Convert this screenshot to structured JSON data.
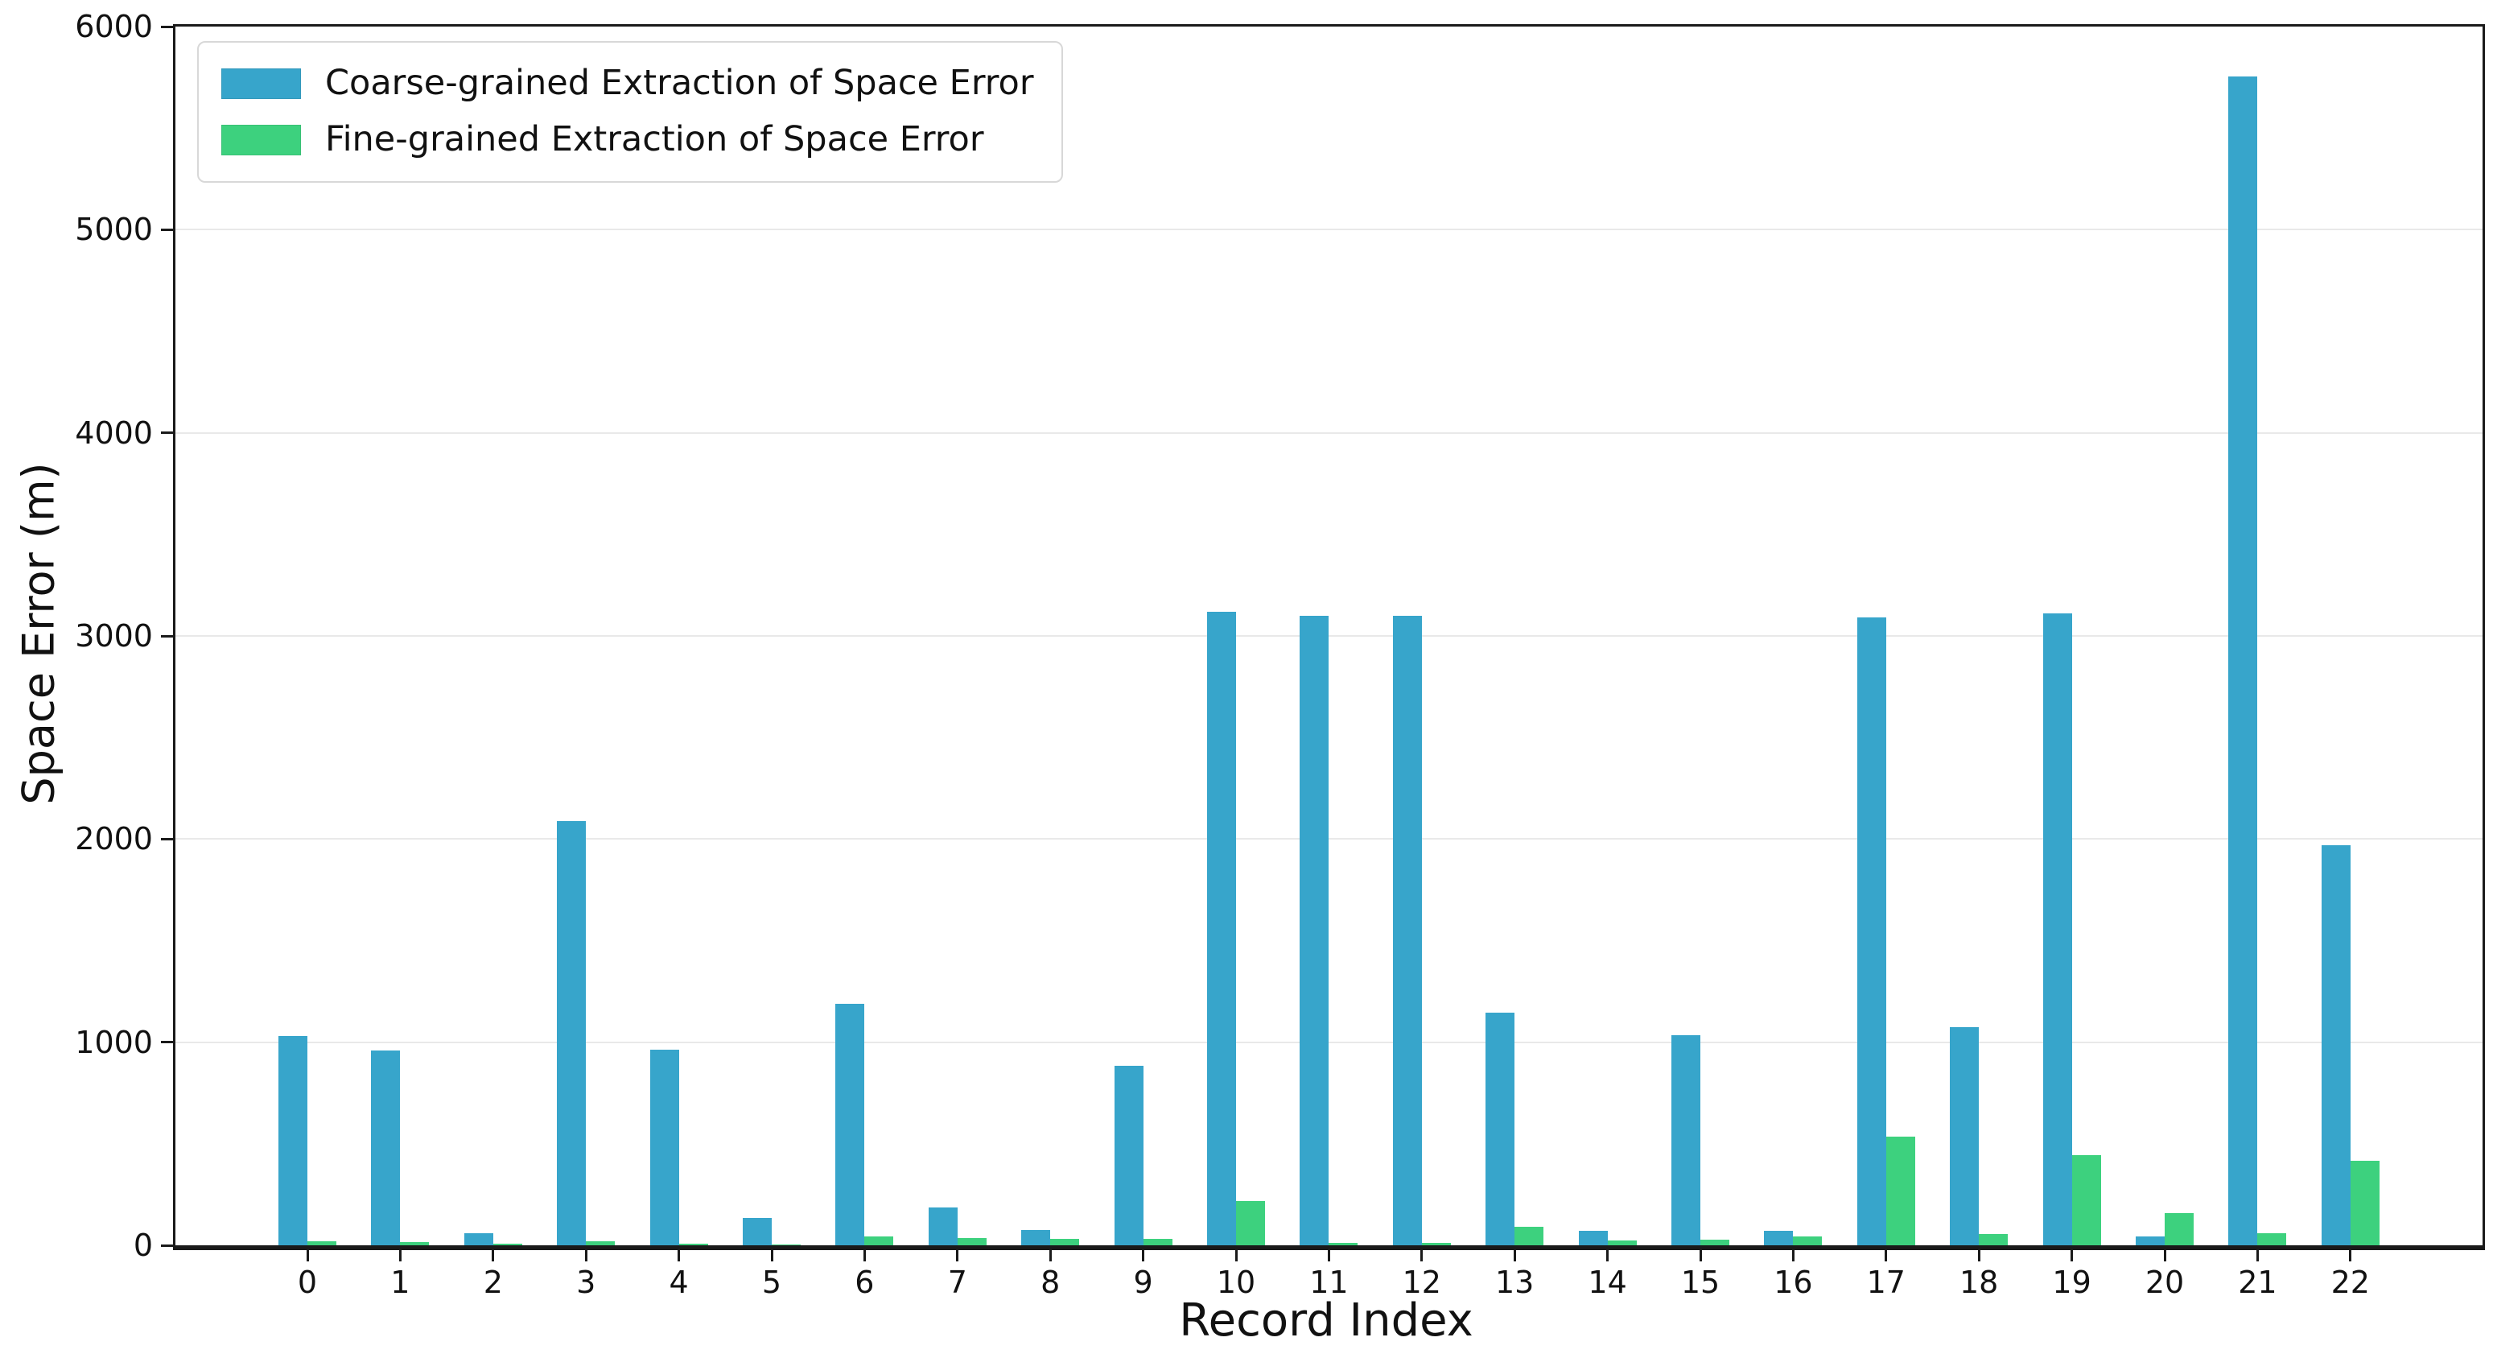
{
  "chart_data": {
    "type": "bar",
    "title": "",
    "xlabel": "Record Index",
    "ylabel": "Space Error (m)",
    "categories": [
      "0",
      "1",
      "2",
      "3",
      "4",
      "5",
      "6",
      "7",
      "8",
      "9",
      "10",
      "11",
      "12",
      "13",
      "14",
      "15",
      "16",
      "17",
      "18",
      "19",
      "20",
      "21",
      "22"
    ],
    "series": [
      {
        "name": "Coarse-grained Extraction of Space Error",
        "color": "#37A5CB",
        "values": [
          1030,
          960,
          60,
          2090,
          965,
          135,
          1190,
          185,
          75,
          885,
          3120,
          3100,
          3100,
          1145,
          70,
          1035,
          70,
          3090,
          1075,
          3110,
          45,
          5755,
          1970
        ]
      },
      {
        "name": "Fine-grained Extraction of Space Error",
        "color": "#3DD17E",
        "values": [
          20,
          15,
          8,
          18,
          7,
          2,
          45,
          35,
          33,
          30,
          220,
          13,
          10,
          90,
          24,
          27,
          44,
          535,
          55,
          445,
          160,
          60,
          415
        ]
      }
    ],
    "ylim": [
      0,
      6000
    ],
    "yticks": [
      0,
      1000,
      2000,
      3000,
      4000,
      5000,
      6000
    ],
    "grid": "horizontal",
    "gridline_color": "#e9e9e9",
    "legend_position": "upper-left",
    "axis_color": "#1a1a1a"
  }
}
